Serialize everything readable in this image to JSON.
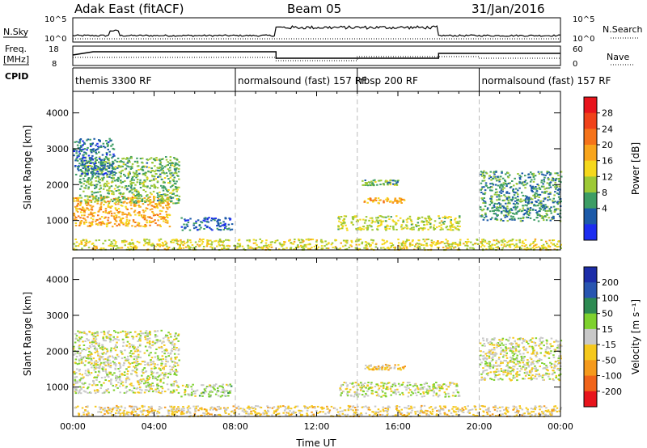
{
  "header": {
    "station": "Adak East (fitACF)",
    "beam": "Beam 05",
    "date": "31/Jan/2016"
  },
  "status_panels": {
    "nsky": {
      "label": "N.Sky",
      "tick_top": "10^5",
      "tick_bottom": "10^0"
    },
    "nsearch": {
      "label": "N.Search",
      "tick_top": "10^5",
      "tick_bottom": "10^0"
    },
    "freq": {
      "label_top": "Freq.",
      "label_bottom": "[MHz]",
      "tick_top": "18",
      "tick_bottom": "8"
    },
    "nave": {
      "label": "Nave",
      "tick_top": "60",
      "tick_bottom": "0"
    },
    "cpid_label": "CPID",
    "cpid_segments": [
      {
        "start_hour": 0,
        "label": "themis 3300 RF"
      },
      {
        "start_hour": 8,
        "label": "normalsound (fast) 157 RF"
      },
      {
        "start_hour": 14,
        "label": "rbsp 200 RF"
      },
      {
        "start_hour": 20,
        "label": "normalsound (fast) 157 RF"
      }
    ]
  },
  "colorbars": {
    "power": {
      "label": "Power [dB]",
      "ticks": [
        "28",
        "24",
        "20",
        "16",
        "12",
        "8",
        "4"
      ],
      "colors": [
        "#e8141c",
        "#f0421a",
        "#f5731a",
        "#f8a51c",
        "#f5d81c",
        "#9dc936",
        "#3d9d64",
        "#1c5aa8",
        "#1c2df0"
      ]
    },
    "velocity": {
      "label": "Velocity [m s⁻¹]",
      "ticks": [
        "200",
        "100",
        "50",
        "15",
        "-15",
        "-50",
        "-100",
        "-200"
      ],
      "colors": [
        "#1c2da8",
        "#2855b0",
        "#2d8a52",
        "#7ed12e",
        "#c8c8c8",
        "#f5c81c",
        "#f59a1c",
        "#f0641a",
        "#e8141c"
      ]
    }
  },
  "chart_data": [
    {
      "type": "heatmap",
      "name": "Power",
      "xlabel": "",
      "ylabel": "Slant Range [km]",
      "xlim": [
        0,
        24
      ],
      "ylim": [
        180,
        4600
      ],
      "ytick_labels": [
        "1000",
        "2000",
        "3000",
        "4000"
      ],
      "zlim": [
        0,
        30
      ],
      "dashed_lines_hours": [
        8,
        14,
        20
      ],
      "blobs": [
        {
          "t0": 0.0,
          "t1": 4.8,
          "r0": 850,
          "r1": 1700,
          "value": 18
        },
        {
          "t0": 0.3,
          "t1": 5.2,
          "r0": 1500,
          "r1": 2800,
          "value": 10
        },
        {
          "t0": 0.0,
          "t1": 2.0,
          "r0": 2300,
          "r1": 3300,
          "value": 6
        },
        {
          "t0": 5.3,
          "t1": 7.8,
          "r0": 750,
          "r1": 1100,
          "value": 5
        },
        {
          "t0": 13.0,
          "t1": 19.0,
          "r0": 750,
          "r1": 1150,
          "value": 13
        },
        {
          "t0": 14.3,
          "t1": 16.3,
          "r0": 1500,
          "r1": 1650,
          "value": 18
        },
        {
          "t0": 14.2,
          "t1": 16.0,
          "r0": 2000,
          "r1": 2150,
          "value": 10
        },
        {
          "t0": 20.0,
          "t1": 24.0,
          "r0": 1000,
          "r1": 2400,
          "value": 8
        },
        {
          "t0": 0.0,
          "t1": 24.0,
          "r0": 200,
          "r1": 500,
          "value": 14
        }
      ]
    },
    {
      "type": "heatmap",
      "name": "Velocity",
      "xlabel": "Time UT",
      "ylabel": "Slant Range [km]",
      "xlim": [
        0,
        24
      ],
      "ylim": [
        180,
        4600
      ],
      "xtick_labels": [
        "00:00",
        "04:00",
        "08:00",
        "12:00",
        "16:00",
        "20:00",
        "00:00"
      ],
      "ytick_labels": [
        "1000",
        "2000",
        "3000",
        "4000"
      ],
      "zlim": [
        -250,
        250
      ],
      "dashed_lines_hours": [
        8,
        14,
        20
      ],
      "blobs": [
        {
          "t0": 0.0,
          "t1": 5.2,
          "r0": 850,
          "r1": 2600,
          "value": 0
        },
        {
          "t0": 5.3,
          "t1": 7.8,
          "r0": 750,
          "r1": 1100,
          "value": 30
        },
        {
          "t0": 13.0,
          "t1": 19.0,
          "r0": 750,
          "r1": 1150,
          "value": 10
        },
        {
          "t0": 14.3,
          "t1": 16.3,
          "r0": 1500,
          "r1": 1650,
          "value": -60
        },
        {
          "t0": 20.0,
          "t1": 24.0,
          "r0": 1200,
          "r1": 2400,
          "value": 0
        },
        {
          "t0": 0.0,
          "t1": 24.0,
          "r0": 200,
          "r1": 500,
          "value": -40
        }
      ]
    }
  ]
}
